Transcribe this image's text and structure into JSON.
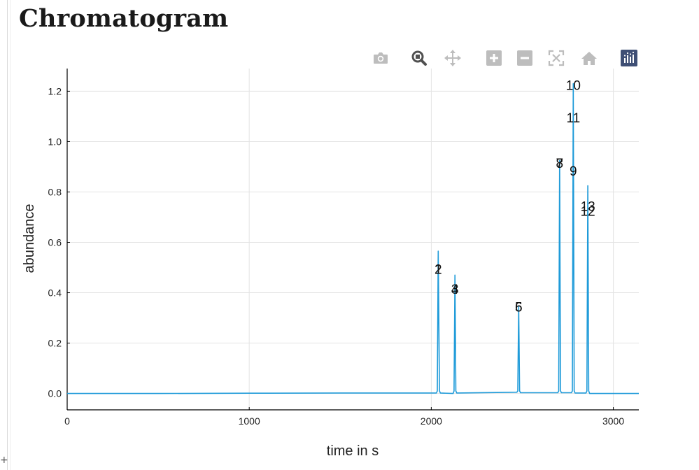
{
  "page": {
    "title": "Chromatogram"
  },
  "toolbar": {
    "buttons": [
      {
        "name": "camera-icon",
        "label": "Download plot as png",
        "active": false
      },
      {
        "name": "zoom-icon",
        "label": "Zoom",
        "active": true
      },
      {
        "name": "pan-icon",
        "label": "Pan",
        "active": false
      },
      {
        "name": "zoom-in-icon",
        "label": "Zoom in",
        "active": false
      },
      {
        "name": "zoom-out-icon",
        "label": "Zoom out",
        "active": false
      },
      {
        "name": "autoscale-icon",
        "label": "Autoscale",
        "active": false
      },
      {
        "name": "reset-axes-icon",
        "label": "Reset axes",
        "active": false
      },
      {
        "name": "plotly-logo-icon",
        "label": "Produced with Plotly",
        "active": false
      }
    ]
  },
  "chart_data": {
    "type": "line",
    "xlabel": "time in s",
    "ylabel": "abundance",
    "xlim": [
      0,
      3140
    ],
    "ylim": [
      -0.065,
      1.29
    ],
    "xticks": [
      0,
      1000,
      2000,
      3000
    ],
    "yticks": [
      0.0,
      0.2,
      0.4,
      0.6,
      0.8,
      1.0,
      1.2
    ],
    "ytick_labels": [
      "0.0",
      "0.2",
      "0.4",
      "0.6",
      "0.8",
      "1.0",
      "1.2"
    ],
    "xtick_labels": [
      "0",
      "1000",
      "2000",
      "3000"
    ],
    "grid": true,
    "line_color": "#1f9bd9",
    "series": [
      {
        "x": [
          0,
          500,
          1000,
          1500,
          2000,
          2028,
          2033,
          2038,
          2045,
          2050,
          2120,
          2125,
          2130,
          2135,
          2140,
          2470,
          2475,
          2480,
          2485,
          2490,
          2695,
          2700,
          2705,
          2710,
          2715,
          2770,
          2775,
          2780,
          2785,
          2790,
          2850,
          2855,
          2860,
          2865,
          2870,
          3140
        ],
        "y": [
          0.0,
          0.0,
          0.001,
          0.002,
          0.002,
          0.002,
          0.01,
          0.565,
          0.01,
          0.002,
          0.0,
          0.01,
          0.47,
          0.01,
          0.002,
          0.005,
          0.01,
          0.345,
          0.01,
          0.003,
          0.003,
          0.01,
          0.925,
          0.01,
          0.003,
          0.003,
          0.01,
          1.23,
          0.01,
          0.002,
          0.002,
          0.01,
          0.825,
          0.01,
          0.0,
          0.0
        ]
      }
    ],
    "annotations": [
      {
        "text": "1",
        "x": 2038,
        "y": 0.495
      },
      {
        "text": "2",
        "x": 2038,
        "y": 0.495
      },
      {
        "text": "3",
        "x": 2130,
        "y": 0.415
      },
      {
        "text": "4",
        "x": 2130,
        "y": 0.415
      },
      {
        "text": "5",
        "x": 2480,
        "y": 0.345
      },
      {
        "text": "6",
        "x": 2480,
        "y": 0.345
      },
      {
        "text": "7",
        "x": 2705,
        "y": 0.915
      },
      {
        "text": "8",
        "x": 2705,
        "y": 0.915
      },
      {
        "text": "9",
        "x": 2780,
        "y": 0.885
      },
      {
        "text": "10",
        "x": 2780,
        "y": 1.225
      },
      {
        "text": "11",
        "x": 2780,
        "y": 1.095
      },
      {
        "text": "12",
        "x": 2860,
        "y": 0.725
      },
      {
        "text": "13",
        "x": 2860,
        "y": 0.745
      }
    ]
  }
}
